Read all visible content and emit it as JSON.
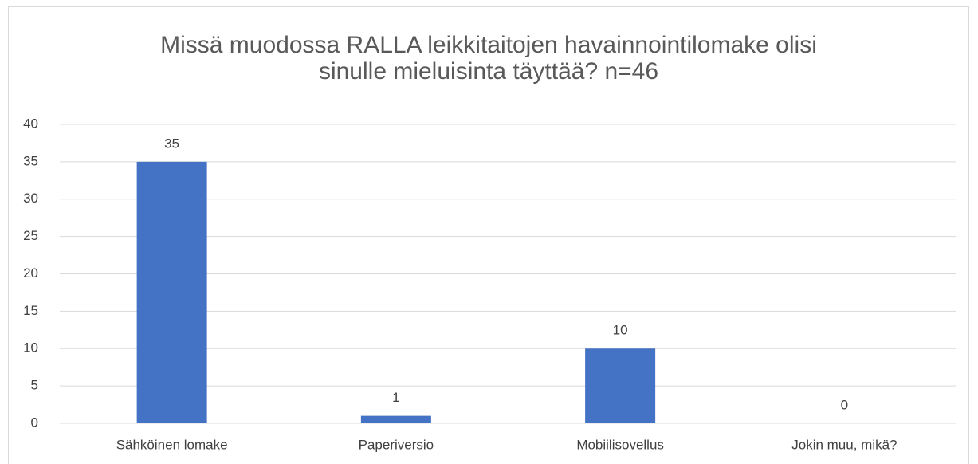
{
  "chart_data": {
    "type": "bar",
    "title": "Missä muodossa RALLA leikkitaitojen havainnointilomake olisi sinulle mieluisinta täyttää? n=46",
    "categories": [
      "Sähköinen lomake",
      "Paperiversio",
      "Mobiilisovellus",
      "Jokin muu, mikä?"
    ],
    "values": [
      35,
      1,
      10,
      0
    ],
    "color": "#4472c4",
    "ylim": [
      0,
      40
    ],
    "yticks": [
      0,
      5,
      10,
      15,
      20,
      25,
      30,
      35,
      40
    ],
    "grid": true
  }
}
